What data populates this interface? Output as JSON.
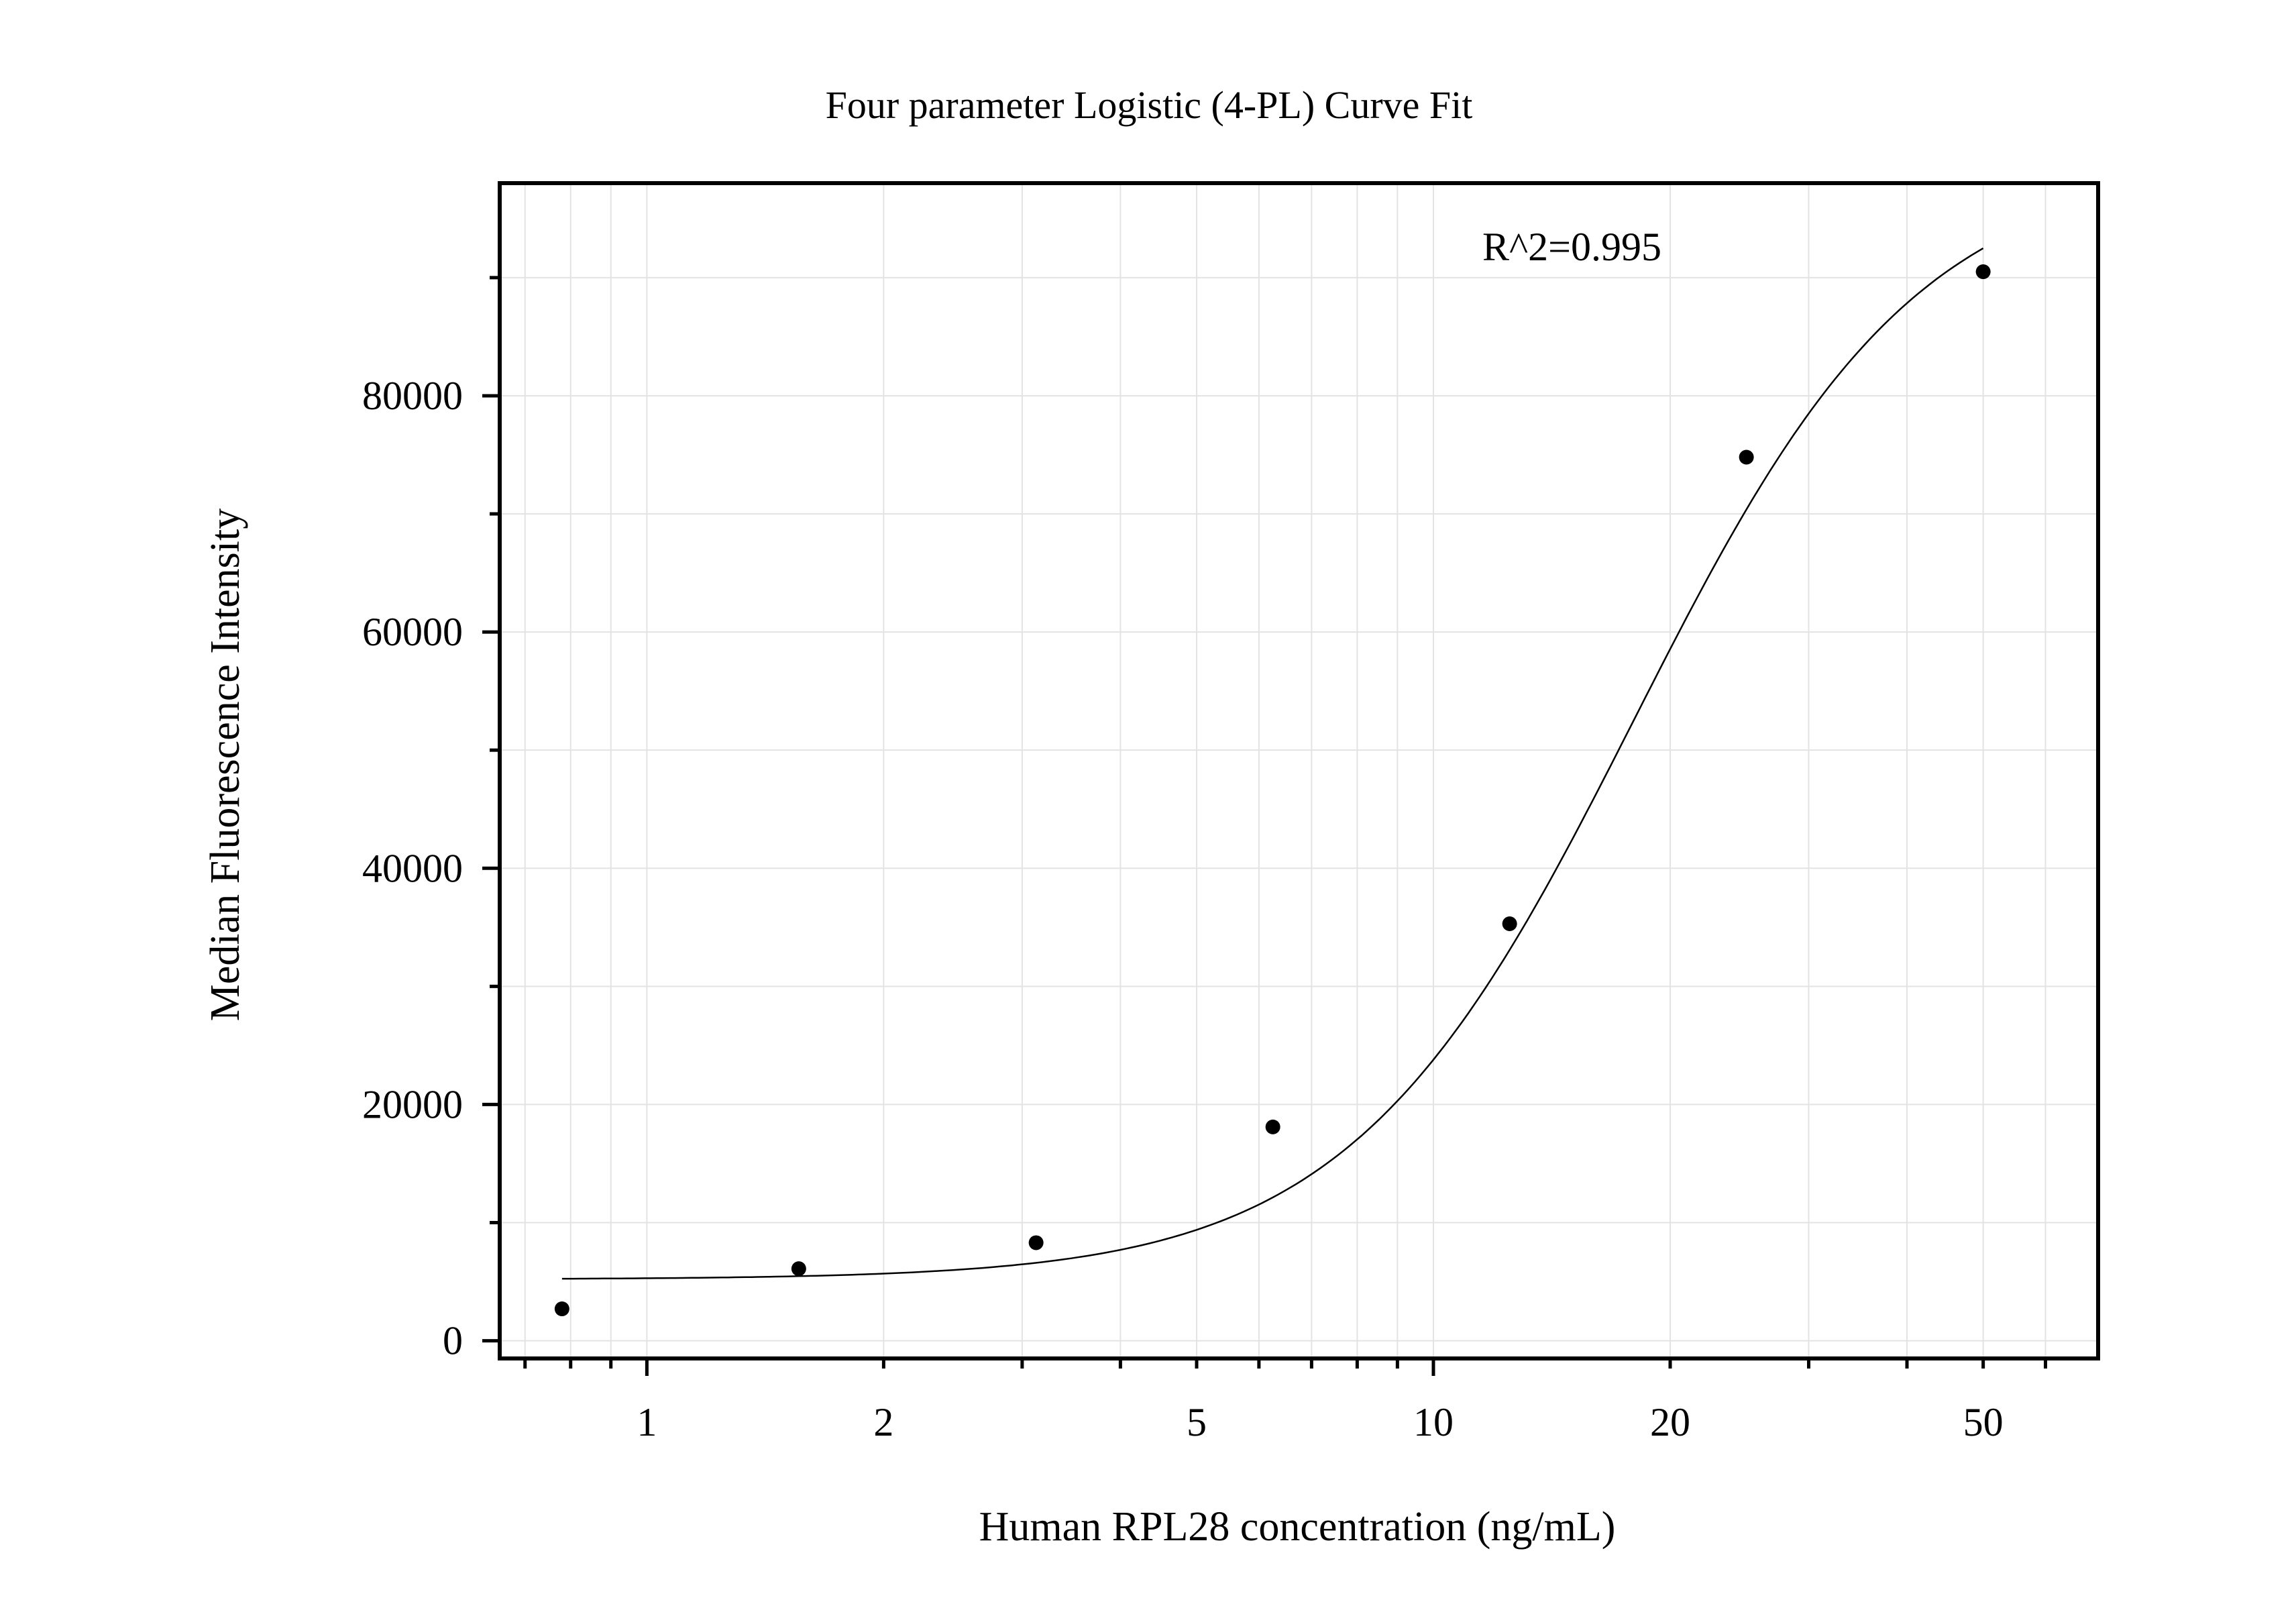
{
  "chart_data": {
    "type": "scatter",
    "title": "Four parameter Logistic (4-PL) Curve Fit",
    "xlabel": "Human RPL28 concentration (ng/mL)",
    "ylabel": "Median Fluorescence Intensity",
    "annotation": "R^2=0.995",
    "x_scale": "log",
    "xlim": [
      0.65,
      70
    ],
    "ylim": [
      -1500,
      98000
    ],
    "x_tick_labels": [
      "1",
      "2",
      "5",
      "10",
      "20",
      "50"
    ],
    "x_ticks": [
      1,
      2,
      5,
      10,
      20,
      50
    ],
    "y_tick_labels": [
      "0",
      "20000",
      "40000",
      "60000",
      "80000"
    ],
    "y_ticks": [
      0,
      20000,
      40000,
      60000,
      80000
    ],
    "grid": true,
    "series": [
      {
        "type": "scatter",
        "x": [
          0.78,
          1.56,
          3.125,
          6.25,
          12.5,
          25,
          50
        ],
        "y": [
          2700,
          6100,
          8300,
          18100,
          35300,
          74800,
          90500
        ]
      },
      {
        "type": "line",
        "fit": "4-PL",
        "params": {
          "bottom": 5200,
          "top": 100000,
          "ec50": 18,
          "hill": 2.4
        },
        "x_range": [
          0.78,
          50
        ]
      }
    ]
  }
}
